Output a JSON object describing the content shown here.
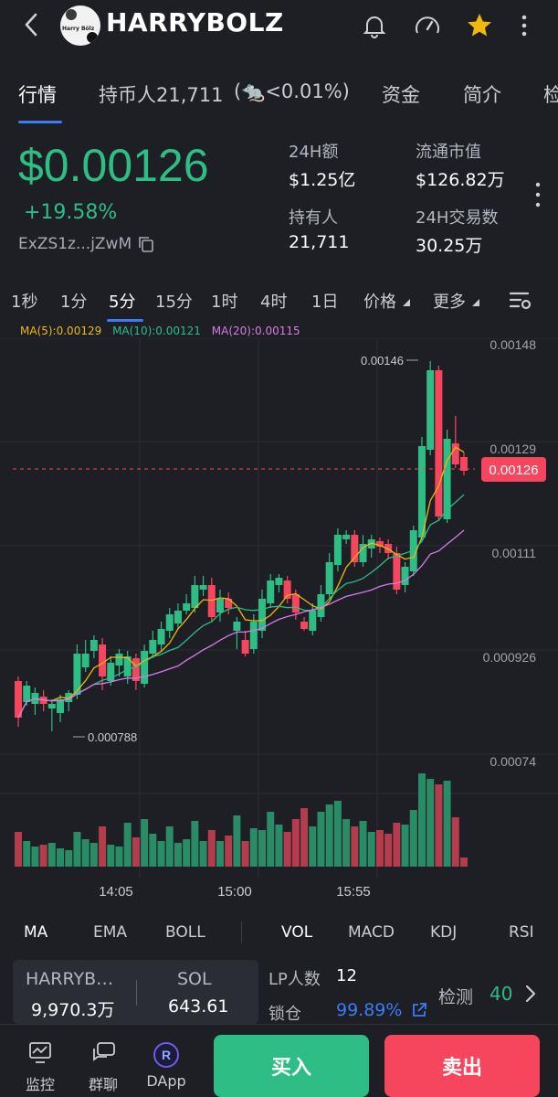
{
  "header": {
    "token_name": "HARRYBOLZ",
    "avatar_text": "Harry Bölz"
  },
  "tabs": [
    {
      "label": "行情"
    },
    {
      "label": "持币人21,711"
    },
    {
      "label": "(🐀<0.01%)"
    },
    {
      "label": "资金"
    },
    {
      "label": "简介"
    },
    {
      "label": "检"
    }
  ],
  "price": {
    "current": "$0.00126",
    "change": "+19.58%",
    "address": "ExZS1z...jZwM"
  },
  "stats": [
    {
      "label": "24H额",
      "value": "$1.25亿"
    },
    {
      "label": "流通市值",
      "value": "$126.82万"
    },
    {
      "label": "持有人",
      "value": "21,711"
    },
    {
      "label": "24H交易数",
      "value": "30.25万"
    }
  ],
  "intervals": [
    {
      "label": "1秒"
    },
    {
      "label": "1分"
    },
    {
      "label": "5分"
    },
    {
      "label": "15分"
    },
    {
      "label": "1时"
    },
    {
      "label": "4时"
    },
    {
      "label": "1日"
    },
    {
      "label": "价格"
    },
    {
      "label": "更多"
    }
  ],
  "ma_legend": {
    "ma5": "MA(5):0.00129",
    "ma10": "MA(10):0.00121",
    "ma20": "MA(20):0.00115",
    "ma5_color": "#f0b90b",
    "ma10_color": "#2ebd85",
    "ma20_color": "#d67ce8"
  },
  "chart_data": {
    "type": "candlestick",
    "y_ticks": [
      "0.00148",
      "0.00129",
      "0.00111",
      "0.000926",
      "0.00074"
    ],
    "ylim": [
      0.00074,
      0.00148
    ],
    "x_ticks": [
      "14:05",
      "15:00",
      "15:55"
    ],
    "current_price_label": "0.00126",
    "high_label": "0.00146",
    "low_label": "0.000788",
    "colors": {
      "up": "#2ebd85",
      "down": "#f6465d"
    }
  },
  "indicators": [
    {
      "label": "MA"
    },
    {
      "label": "EMA"
    },
    {
      "label": "BOLL"
    },
    {
      "label": "VOL"
    },
    {
      "label": "MACD"
    },
    {
      "label": "KDJ"
    },
    {
      "label": "RSI"
    }
  ],
  "pool": {
    "token_symbol": "HARRYB…",
    "token_amount": "9,970.3万",
    "quote_symbol": "SOL",
    "quote_amount": "643.61",
    "lp_label": "LP人数",
    "lp_value": "12",
    "lock_label": "锁仓",
    "lock_value": "99.89%",
    "check_label": "检测",
    "check_value": "40"
  },
  "bottom": {
    "monitor": "监控",
    "group_chat": "群聊",
    "dapp": "DApp",
    "buy": "买入",
    "sell": "卖出"
  }
}
